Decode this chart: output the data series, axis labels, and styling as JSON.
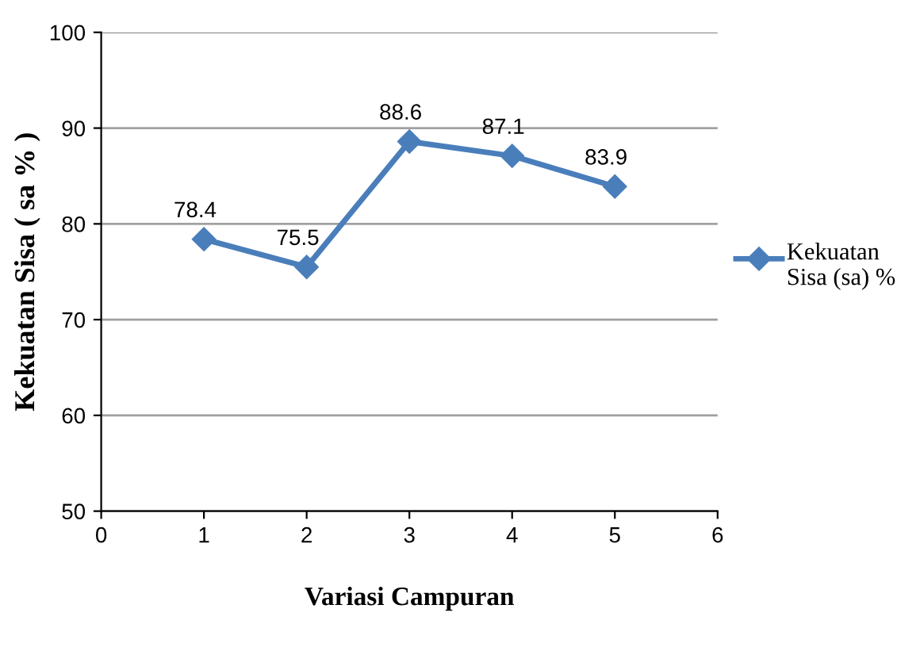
{
  "chart_data": {
    "type": "line",
    "xlabel": "Variasi Campuran",
    "ylabel": "Kekuatan Sisa ( sa % )",
    "x": [
      1,
      2,
      3,
      4,
      5
    ],
    "series": [
      {
        "name": "Kekuatan Sisa (sa) %",
        "color": "#4a7ebb",
        "values": [
          78.4,
          75.5,
          88.6,
          87.1,
          83.9
        ]
      }
    ],
    "xlim": [
      0,
      6
    ],
    "xticks": [
      0,
      1,
      2,
      3,
      4,
      5,
      6
    ],
    "ylim": [
      50,
      100
    ],
    "yticks": [
      50,
      60,
      70,
      80,
      90,
      100
    ],
    "grid": "y",
    "legend": "right",
    "marker": "diamond",
    "line_style": "solid",
    "data_labels": true
  }
}
